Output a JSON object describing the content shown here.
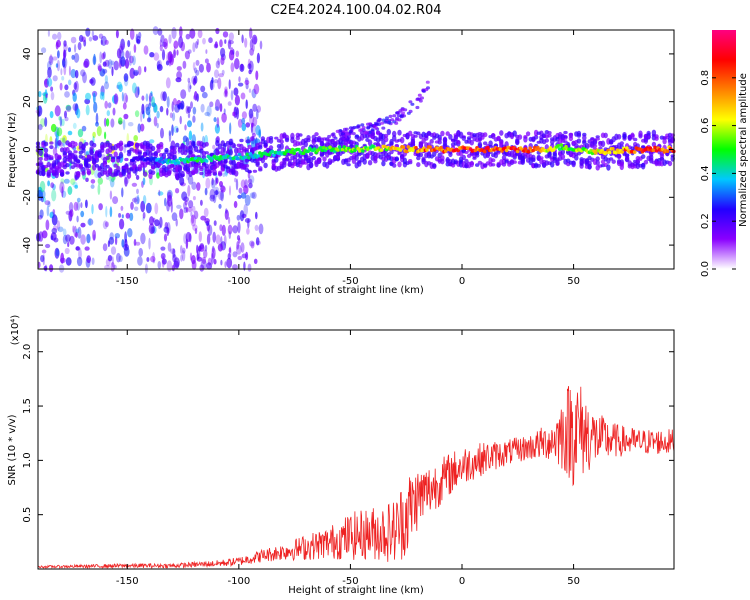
{
  "title": "C2E4.2024.100.04.02.R04",
  "chart_data": [
    {
      "type": "heatmap",
      "xlabel": "Height of straight line (km)",
      "ylabel": "Frequency (Hz)",
      "xlim": [
        -190,
        95
      ],
      "ylim": [
        -50,
        50
      ],
      "xticks": [
        -150,
        -100,
        -50,
        0,
        50
      ],
      "yticks": [
        -40,
        -20,
        0,
        20,
        40
      ],
      "grid": false,
      "colorbar": {
        "label": "Normalized spectral amplitude",
        "range": [
          0,
          1
        ],
        "ticks": [
          0.0,
          0.2,
          0.4,
          0.6,
          0.8
        ],
        "tick_labels": [
          "0.0",
          "0.2",
          "0.4",
          "0.6",
          "0.8"
        ],
        "colormap": [
          "#ffffff",
          "#8a00ff",
          "#2200ff",
          "#00c8ff",
          "#00ff00",
          "#ffff00",
          "#ff8000",
          "#ff0000",
          "#ff0080"
        ]
      },
      "ridge": [
        {
          "x": -145,
          "y": -4,
          "amp": 0.25
        },
        {
          "x": -130,
          "y": -5,
          "amp": 0.45
        },
        {
          "x": -115,
          "y": -4,
          "amp": 0.5
        },
        {
          "x": -100,
          "y": -3,
          "amp": 0.45
        },
        {
          "x": -80,
          "y": -1,
          "amp": 0.5
        },
        {
          "x": -60,
          "y": 0,
          "amp": 0.55
        },
        {
          "x": -40,
          "y": 0.5,
          "amp": 0.6
        },
        {
          "x": -20,
          "y": 0,
          "amp": 0.85
        },
        {
          "x": 0,
          "y": 0,
          "amp": 0.9
        },
        {
          "x": 20,
          "y": 0,
          "amp": 0.9
        },
        {
          "x": 35,
          "y": 0,
          "amp": 0.8
        },
        {
          "x": 45,
          "y": 1,
          "amp": 0.55
        },
        {
          "x": 60,
          "y": -1,
          "amp": 0.7
        },
        {
          "x": 80,
          "y": 0,
          "amp": 0.9
        },
        {
          "x": 95,
          "y": 0,
          "amp": 0.85
        }
      ],
      "branch": [
        {
          "x": -60,
          "y": 4
        },
        {
          "x": -45,
          "y": 8
        },
        {
          "x": -30,
          "y": 13
        },
        {
          "x": -20,
          "y": 20
        },
        {
          "x": -15,
          "y": 27
        }
      ],
      "noise_region_x": [
        -190,
        -100
      ]
    },
    {
      "type": "line",
      "xlabel": "Height of straight line (km)",
      "ylabel": "SNR (10 * v/v)",
      "y_multiplier": "(x10⁴)",
      "xlim": [
        -190,
        95
      ],
      "ylim": [
        0,
        2.2
      ],
      "xticks": [
        -150,
        -100,
        -50,
        0,
        50
      ],
      "yticks": [
        0.5,
        1.0,
        1.5,
        2.0
      ],
      "ytick_labels": [
        "0.5",
        "1.0",
        "1.5",
        "2.0"
      ],
      "series": [
        {
          "color": "#ee2222",
          "x": [
            -190,
            -150,
            -130,
            -110,
            -100,
            -90,
            -80,
            -70,
            -60,
            -50,
            -40,
            -30,
            -25,
            -20,
            -15,
            -10,
            -5,
            0,
            10,
            20,
            30,
            40,
            45,
            50,
            55,
            60,
            70,
            80,
            95
          ],
          "y": [
            0.02,
            0.03,
            0.03,
            0.05,
            0.07,
            0.12,
            0.16,
            0.2,
            0.24,
            0.3,
            0.33,
            0.35,
            0.5,
            0.65,
            0.72,
            0.8,
            0.88,
            0.95,
            1.02,
            1.07,
            1.12,
            1.18,
            1.25,
            1.3,
            1.25,
            1.2,
            1.18,
            1.17,
            1.17
          ],
          "spread": [
            0.01,
            0.02,
            0.02,
            0.03,
            0.04,
            0.06,
            0.08,
            0.12,
            0.15,
            0.22,
            0.25,
            0.3,
            0.4,
            0.3,
            0.25,
            0.22,
            0.2,
            0.18,
            0.15,
            0.12,
            0.12,
            0.18,
            0.35,
            0.55,
            0.4,
            0.25,
            0.15,
            0.12,
            0.12
          ]
        }
      ]
    }
  ]
}
